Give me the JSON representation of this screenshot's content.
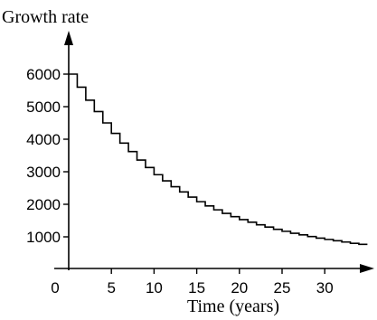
{
  "chart_data": {
    "type": "line",
    "style": "step",
    "ylabel": "Growth rate",
    "xlabel": "Time (years)",
    "origin_label": "0",
    "xlim": [
      0,
      35
    ],
    "ylim": [
      0,
      6000
    ],
    "x_ticks": [
      {
        "value": 5,
        "label": "5"
      },
      {
        "value": 10,
        "label": "10"
      },
      {
        "value": 15,
        "label": "15"
      },
      {
        "value": 20,
        "label": "20"
      },
      {
        "value": 25,
        "label": "25"
      },
      {
        "value": 30,
        "label": "30"
      }
    ],
    "y_ticks": [
      {
        "value": 1000,
        "label": "1000"
      },
      {
        "value": 2000,
        "label": "2000"
      },
      {
        "value": 3000,
        "label": "3000"
      },
      {
        "value": 4000,
        "label": "4000"
      },
      {
        "value": 5000,
        "label": "5000"
      },
      {
        "value": 6000,
        "label": "6000"
      }
    ],
    "grid": false,
    "line_color": "#000000",
    "series": [
      {
        "x": [
          0,
          1,
          2,
          3,
          4,
          5,
          6,
          7,
          8,
          9,
          10,
          11,
          12,
          13,
          14,
          15,
          16,
          17,
          18,
          19,
          20,
          21,
          22,
          23,
          24,
          25,
          26,
          27,
          28,
          29,
          30,
          31,
          32,
          33,
          34
        ],
        "values": [
          6000,
          5600,
          5200,
          4850,
          4500,
          4180,
          3880,
          3620,
          3360,
          3130,
          2910,
          2720,
          2540,
          2380,
          2220,
          2080,
          1950,
          1830,
          1720,
          1620,
          1530,
          1450,
          1370,
          1300,
          1230,
          1170,
          1110,
          1060,
          1010,
          960,
          920,
          880,
          840,
          800,
          770
        ]
      }
    ]
  }
}
